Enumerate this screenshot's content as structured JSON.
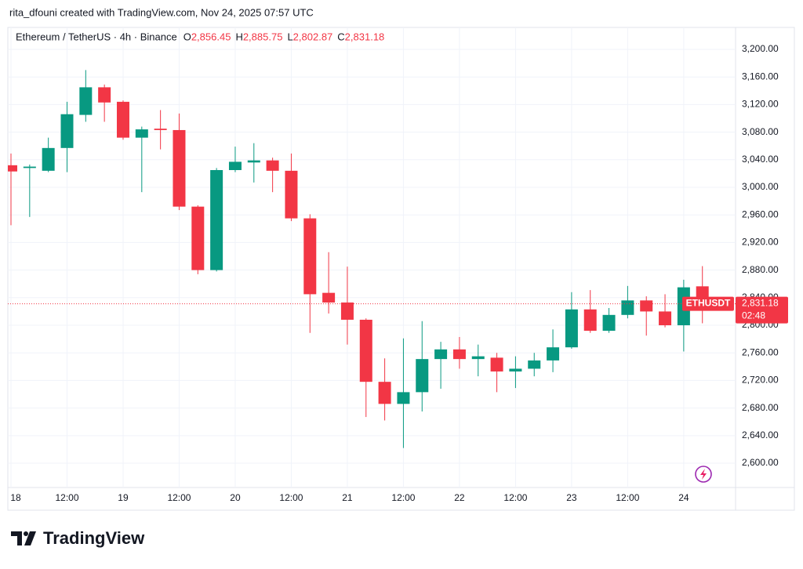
{
  "chart_data": {
    "type": "candlestick",
    "attribution": "rita_dfouni created with TradingView.com, Nov 24, 2025 07:57 UTC",
    "title": "Ethereum / TetherUS · 4h · Binance",
    "ohlc_header": [
      {
        "key": "O",
        "text": "2,856.45"
      },
      {
        "key": "H",
        "text": "2,885.75"
      },
      {
        "key": "L",
        "text": "2,802.87"
      },
      {
        "key": "C",
        "text": "2,831.18"
      }
    ],
    "symbol_tag": "ETHUSDT",
    "last_price": {
      "value": 2831.18,
      "label": "2,831.18"
    },
    "countdown": "02:48",
    "brand": "TradingView",
    "up_color": "#089981",
    "down_color": "#f23645",
    "grid": true,
    "categories": [
      "18",
      null,
      null,
      "12:00",
      null,
      null,
      "19",
      null,
      null,
      "12:00",
      null,
      null,
      "20",
      null,
      null,
      "12:00",
      null,
      null,
      "21",
      null,
      null,
      "12:00",
      null,
      null,
      "22",
      null,
      null,
      "12:00",
      null,
      null,
      "23",
      null,
      null,
      "12:00",
      null,
      null,
      "24",
      null
    ],
    "open": [
      3032,
      3028,
      3024,
      3057,
      3105,
      3145,
      3124,
      3072,
      3085,
      3083,
      2972,
      2880,
      3025,
      3036,
      3039,
      3024,
      2955,
      2847,
      2833,
      2808,
      2718,
      2686,
      2703,
      2751,
      2765,
      2751,
      2753,
      2733,
      2737,
      2749,
      2768,
      2823,
      2792,
      2815,
      2836,
      2820,
      2800,
      2856.45
    ],
    "high": [
      3049,
      3033,
      3072,
      3124,
      3170,
      3149,
      3126,
      3088,
      3112,
      3107,
      2974,
      3028,
      3059,
      3064,
      3043,
      3049,
      2961,
      2906,
      2885,
      2810,
      2752,
      2781,
      2806,
      2776,
      2783,
      2772,
      2760,
      2755,
      2760,
      2794,
      2848,
      2851,
      2825,
      2857,
      2842,
      2845,
      2866,
      2885.75
    ],
    "low": [
      2945,
      2957,
      3022,
      3022,
      3095,
      3095,
      3069,
      2993,
      3055,
      2967,
      2874,
      2878,
      3022,
      3007,
      2993,
      2951,
      2789,
      2817,
      2772,
      2667,
      2662,
      2622,
      2675,
      2708,
      2737,
      2726,
      2703,
      2709,
      2726,
      2732,
      2766,
      2789,
      2789,
      2810,
      2785,
      2797,
      2762,
      2802.87
    ],
    "close": [
      3023,
      3030,
      3057,
      3106,
      3145,
      3123,
      3072,
      3084,
      3083,
      2972,
      2880,
      3025,
      3037,
      3039,
      3024,
      2955,
      2845,
      2833,
      2808,
      2718,
      2686,
      2703,
      2751,
      2765,
      2751,
      2755,
      2733,
      2737,
      2749,
      2768,
      2823,
      2792,
      2815,
      2836,
      2820,
      2800,
      2855,
      2831.18
    ],
    "ylim": [
      2564.8,
      3231.8
    ],
    "yticks": [
      {
        "value": 2600,
        "label": "2,600.00"
      },
      {
        "value": 2640,
        "label": "2,640.00"
      },
      {
        "value": 2680,
        "label": "2,680.00"
      },
      {
        "value": 2720,
        "label": "2,720.00"
      },
      {
        "value": 2760,
        "label": "2,760.00"
      },
      {
        "value": 2800,
        "label": "2,800.00"
      },
      {
        "value": 2840,
        "label": "2,840.00"
      },
      {
        "value": 2880,
        "label": "2,880.00"
      },
      {
        "value": 2920,
        "label": "2,920.00"
      },
      {
        "value": 2960,
        "label": "2,960.00"
      },
      {
        "value": 3000,
        "label": "3,000.00"
      },
      {
        "value": 3040,
        "label": "3,040.00"
      },
      {
        "value": 3080,
        "label": "3,080.00"
      },
      {
        "value": 3120,
        "label": "3,120.00"
      },
      {
        "value": 3160,
        "label": "3,160.00"
      },
      {
        "value": 3200,
        "label": "3,200.00"
      }
    ]
  }
}
